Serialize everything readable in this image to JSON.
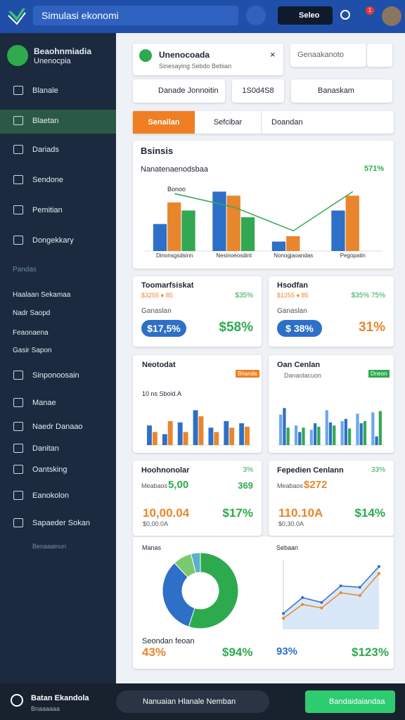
{
  "header": {
    "logo_search": "Simulasi ekonomi",
    "button": "Seleo",
    "badge": "1"
  },
  "sidebar": {
    "profile_name": "Beaohnmiadia",
    "profile_sub": "Unenocpia",
    "items": [
      "Blanale",
      "Blaetan",
      "Dariads",
      "Sendone",
      "Pemitian",
      "Dongekkary"
    ],
    "section": "Pandas",
    "links": [
      "Haalaan Sekamaa",
      "Nadr Saopd",
      "Feaonaena",
      "Gasir Sapon"
    ],
    "items2": [
      "Sinponoosain",
      "Manae",
      "Naedr Danaao",
      "Danitan",
      "Oantsking",
      "Eanokolon",
      "Sapaeder Sokan"
    ],
    "footnote": "Benaaainun"
  },
  "top_card": {
    "title": "Unenocoada",
    "subtitle": "Sinesaying Sebdo Bebian",
    "dropdown": "Genaakanoto",
    "row": [
      "Danade Jonnoitin",
      "1S0d4S8",
      "Banaskam"
    ]
  },
  "tabs": [
    "Senailan",
    "Sefcibar",
    "Doandan"
  ],
  "stat_cards": [
    {
      "title": "Toomarfsiskat",
      "line": "$3255 ♦ 85",
      "right": "$35%",
      "label": "Ganaslan",
      "pill": "$17,5%",
      "big": "$58%"
    },
    {
      "title": "Hsodfan",
      "line": "$1255 ♦ 85",
      "right": "$35% 75%",
      "label": "Ganaslan",
      "pill": "$ 38%",
      "big": "31%"
    }
  ],
  "stat_cards2": [
    {
      "title": "Hoohnonolar",
      "right": "3%",
      "line": "Meabaos",
      "num": "5,00",
      "right2": "369",
      "big": "10,00.04",
      "sub": "$0,00.0A",
      "big2": "$17%"
    },
    {
      "title": "Fepedien Cenlann",
      "right": "33%",
      "line": "Meabaos",
      "num": "$272",
      "big": "110.10A",
      "sub": "$0,30.0A",
      "big2": "$14%"
    }
  ],
  "bottom_card": {
    "left_footer": "Seondan feoan",
    "left_a": "43%",
    "left_b": "$94%",
    "right_a": "93%",
    "right_b": "$123%"
  },
  "footer": {
    "title": "Batan Ekandola",
    "sub": "Bnaaaaaa",
    "user": "Nanuaian Hlanale Nemban",
    "button": "Bandaidaiandaa"
  },
  "chart_data": [
    {
      "type": "bar",
      "title": "Bsinsis",
      "subtitle": "Nanatenaenodsbaa",
      "annotation": "571%",
      "legend": "Bonoo",
      "categories": [
        "Dinonsgsdsinn",
        "Nesinoeosdint",
        "Nonogjaoandas",
        "Pegopatin"
      ],
      "ylim": [
        0,
        100
      ],
      "series": [
        {
          "color": "#2e6fc7",
          "values": [
            40,
            88,
            14,
            60
          ]
        },
        {
          "color": "#e8862d",
          "values": [
            72,
            82,
            22,
            82
          ]
        },
        {
          "color": "#33a852",
          "values": [
            60,
            50,
            null,
            null
          ]
        },
        {
          "color": "#33a852",
          "line": true,
          "values": [
            85,
            65,
            30,
            88
          ]
        }
      ]
    },
    {
      "type": "bar",
      "title": "Neotodat",
      "annotation": "Bhanda",
      "legend": "10 ns Sboid.A",
      "categories": [
        null,
        null,
        null,
        null,
        null,
        null,
        null
      ],
      "ylim": [
        0,
        100
      ],
      "series": [
        {
          "color": "#2e6fc7",
          "values": [
            45,
            25,
            52,
            80,
            40,
            55,
            50
          ]
        },
        {
          "color": "#e8862d",
          "values": [
            30,
            55,
            30,
            66,
            30,
            40,
            42
          ]
        }
      ]
    },
    {
      "type": "bar",
      "title": "Oan Cenlan",
      "annotation": "Dneon",
      "legend": "Danaolacuon",
      "categories": [
        null,
        null,
        null,
        null,
        null,
        null,
        null
      ],
      "ylim": [
        0,
        100
      ],
      "series": [
        {
          "color": "#6aa9e8",
          "values": [
            70,
            45,
            35,
            80,
            55,
            72,
            75
          ]
        },
        {
          "color": "#2e6fc7",
          "values": [
            85,
            30,
            50,
            52,
            60,
            50,
            20
          ]
        },
        {
          "color": "#33a852",
          "values": [
            40,
            40,
            42,
            45,
            38,
            55,
            78
          ]
        }
      ]
    },
    {
      "type": "pie",
      "title": "Manas",
      "values": [
        55,
        33,
        8,
        4
      ],
      "colors": [
        "#2eaa4e",
        "#2e6fc7",
        "#7bc96f",
        "#5ab0c9"
      ]
    },
    {
      "type": "line",
      "title": "Sebaan",
      "ylim": [
        0,
        100
      ],
      "series": [
        {
          "color": "#2e6fc7",
          "values": [
            22,
            45,
            38,
            62,
            60,
            90
          ]
        },
        {
          "color": "#e8862d",
          "values": [
            15,
            35,
            30,
            52,
            48,
            80
          ]
        }
      ]
    }
  ]
}
